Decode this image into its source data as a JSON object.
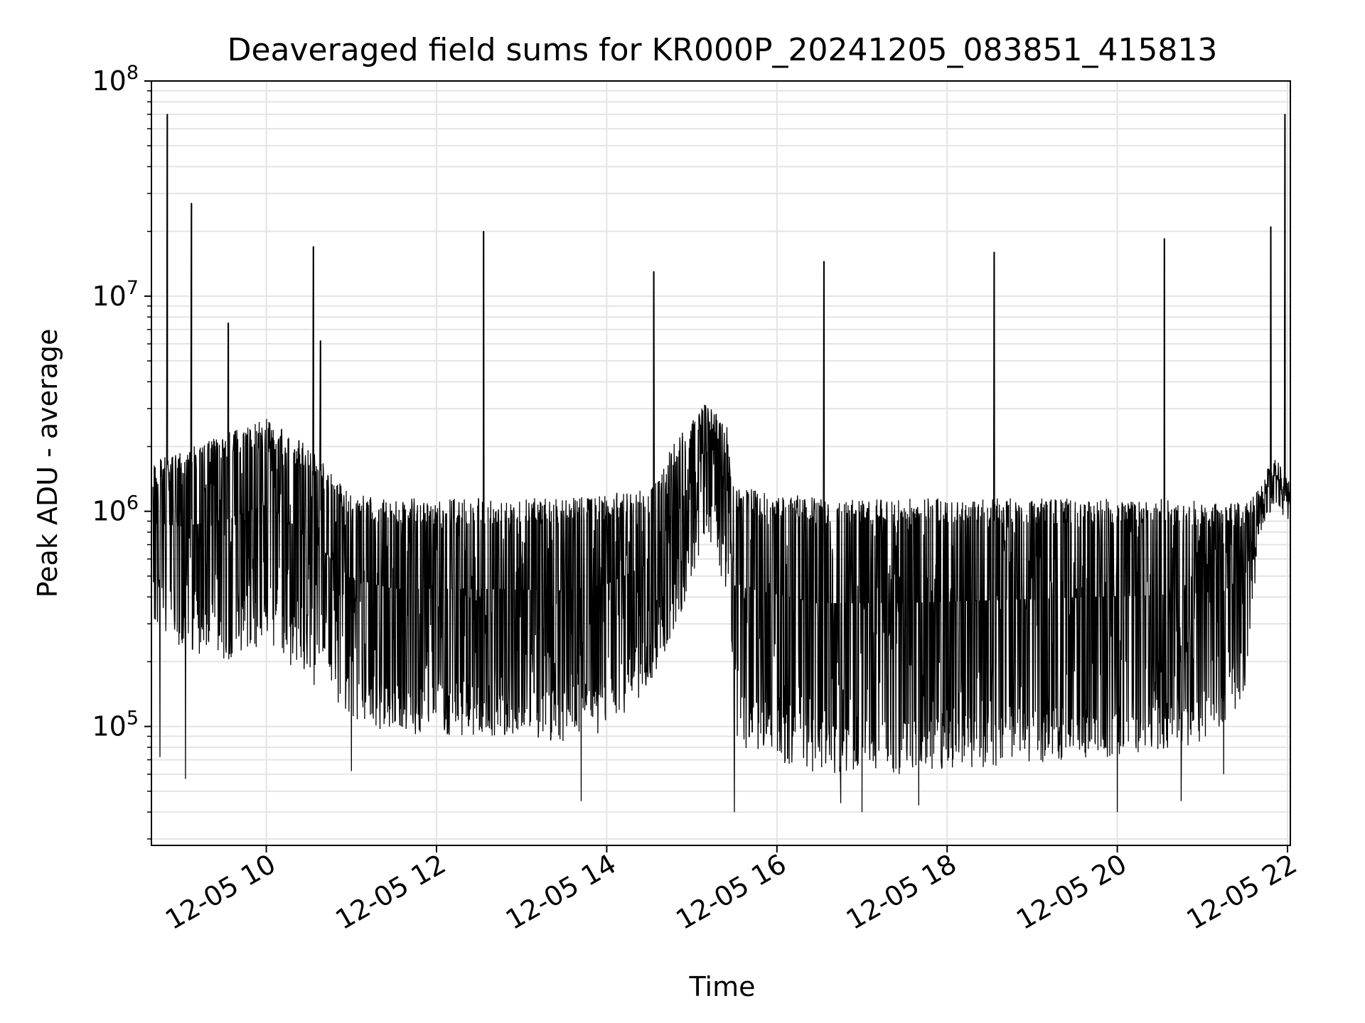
{
  "chart_data": {
    "type": "line",
    "title": "Deaveraged field sums for KR000P_20241205_083851_415813",
    "xlabel": "Time",
    "ylabel": "Peak ADU - average",
    "y_scale": "log",
    "ylim": [
      28000,
      100000000
    ],
    "xlim": [
      "2024-12-05 08:39",
      "2024-12-05 22:02"
    ],
    "grid": true,
    "line_color": "#000000",
    "x_ticks": [
      {
        "t": "2024-12-05 10:00",
        "label": "12-05 10"
      },
      {
        "t": "2024-12-05 12:00",
        "label": "12-05 12"
      },
      {
        "t": "2024-12-05 14:00",
        "label": "12-05 14"
      },
      {
        "t": "2024-12-05 16:00",
        "label": "12-05 16"
      },
      {
        "t": "2024-12-05 18:00",
        "label": "12-05 18"
      },
      {
        "t": "2024-12-05 20:00",
        "label": "12-05 20"
      },
      {
        "t": "2024-12-05 22:00",
        "label": "12-05 22"
      }
    ],
    "y_ticks": [
      {
        "v": 100000,
        "base": "10",
        "exp": "5"
      },
      {
        "v": 1000000,
        "base": "10",
        "exp": "6"
      },
      {
        "v": 10000000,
        "base": "10",
        "exp": "7"
      },
      {
        "v": 100000000,
        "base": "10",
        "exp": "8"
      }
    ],
    "series": [
      {
        "envelope": [
          {
            "t": "2024-12-05 08:40",
            "low": 300000,
            "high": 1700000
          },
          {
            "t": "2024-12-05 09:00",
            "low": 230000,
            "high": 1900000
          },
          {
            "t": "2024-12-05 09:30",
            "low": 200000,
            "high": 2300000
          },
          {
            "t": "2024-12-05 10:00",
            "low": 240000,
            "high": 2700000
          },
          {
            "t": "2024-12-05 10:30",
            "low": 160000,
            "high": 2000000
          },
          {
            "t": "2024-12-05 11:00",
            "low": 110000,
            "high": 1200000
          },
          {
            "t": "2024-12-05 11:30",
            "low": 90000,
            "high": 1150000
          },
          {
            "t": "2024-12-05 12:30",
            "low": 90000,
            "high": 1150000
          },
          {
            "t": "2024-12-05 13:30",
            "low": 85000,
            "high": 1150000
          },
          {
            "t": "2024-12-05 14:00",
            "low": 95000,
            "high": 1200000
          },
          {
            "t": "2024-12-05 14:30",
            "low": 150000,
            "high": 1300000
          },
          {
            "t": "2024-12-05 14:50",
            "low": 300000,
            "high": 2200000
          },
          {
            "t": "2024-12-05 15:10",
            "low": 800000,
            "high": 3300000
          },
          {
            "t": "2024-12-05 15:25",
            "low": 400000,
            "high": 2500000
          },
          {
            "t": "2024-12-05 15:30",
            "low": 80000,
            "high": 1300000
          },
          {
            "t": "2024-12-05 16:30",
            "low": 60000,
            "high": 1150000
          },
          {
            "t": "2024-12-05 17:30",
            "low": 60000,
            "high": 1150000
          },
          {
            "t": "2024-12-05 18:30",
            "low": 65000,
            "high": 1150000
          },
          {
            "t": "2024-12-05 19:30",
            "low": 70000,
            "high": 1150000
          },
          {
            "t": "2024-12-05 20:30",
            "low": 75000,
            "high": 1150000
          },
          {
            "t": "2024-12-05 21:15",
            "low": 90000,
            "high": 1100000
          },
          {
            "t": "2024-12-05 21:30",
            "low": 150000,
            "high": 1100000
          },
          {
            "t": "2024-12-05 21:40",
            "low": 700000,
            "high": 1300000
          },
          {
            "t": "2024-12-05 21:50",
            "low": 1000000,
            "high": 1900000
          },
          {
            "t": "2024-12-05 22:02",
            "low": 800000,
            "high": 1300000
          }
        ],
        "spikes": [
          {
            "t": "2024-12-05 08:50",
            "v": 70000000
          },
          {
            "t": "2024-12-05 09:07",
            "v": 27000000
          },
          {
            "t": "2024-12-05 09:33",
            "v": 7500000
          },
          {
            "t": "2024-12-05 10:33",
            "v": 17000000
          },
          {
            "t": "2024-12-05 10:38",
            "v": 6200000
          },
          {
            "t": "2024-12-05 12:33",
            "v": 20000000
          },
          {
            "t": "2024-12-05 14:33",
            "v": 13000000
          },
          {
            "t": "2024-12-05 16:33",
            "v": 14500000
          },
          {
            "t": "2024-12-05 18:33",
            "v": 16000000
          },
          {
            "t": "2024-12-05 20:33",
            "v": 18500000
          },
          {
            "t": "2024-12-05 21:48",
            "v": 21000000
          },
          {
            "t": "2024-12-05 21:58",
            "v": 70000000
          }
        ],
        "dips": [
          {
            "t": "2024-12-05 08:45",
            "v": 72000
          },
          {
            "t": "2024-12-05 09:03",
            "v": 57000
          },
          {
            "t": "2024-12-05 11:00",
            "v": 62000
          },
          {
            "t": "2024-12-05 13:42",
            "v": 45000
          },
          {
            "t": "2024-12-05 15:30",
            "v": 40000
          },
          {
            "t": "2024-12-05 16:45",
            "v": 44000
          },
          {
            "t": "2024-12-05 17:00",
            "v": 40000
          },
          {
            "t": "2024-12-05 17:40",
            "v": 43000
          },
          {
            "t": "2024-12-05 20:00",
            "v": 40000
          },
          {
            "t": "2024-12-05 20:45",
            "v": 45000
          },
          {
            "t": "2024-12-05 21:15",
            "v": 60000
          }
        ]
      }
    ]
  }
}
